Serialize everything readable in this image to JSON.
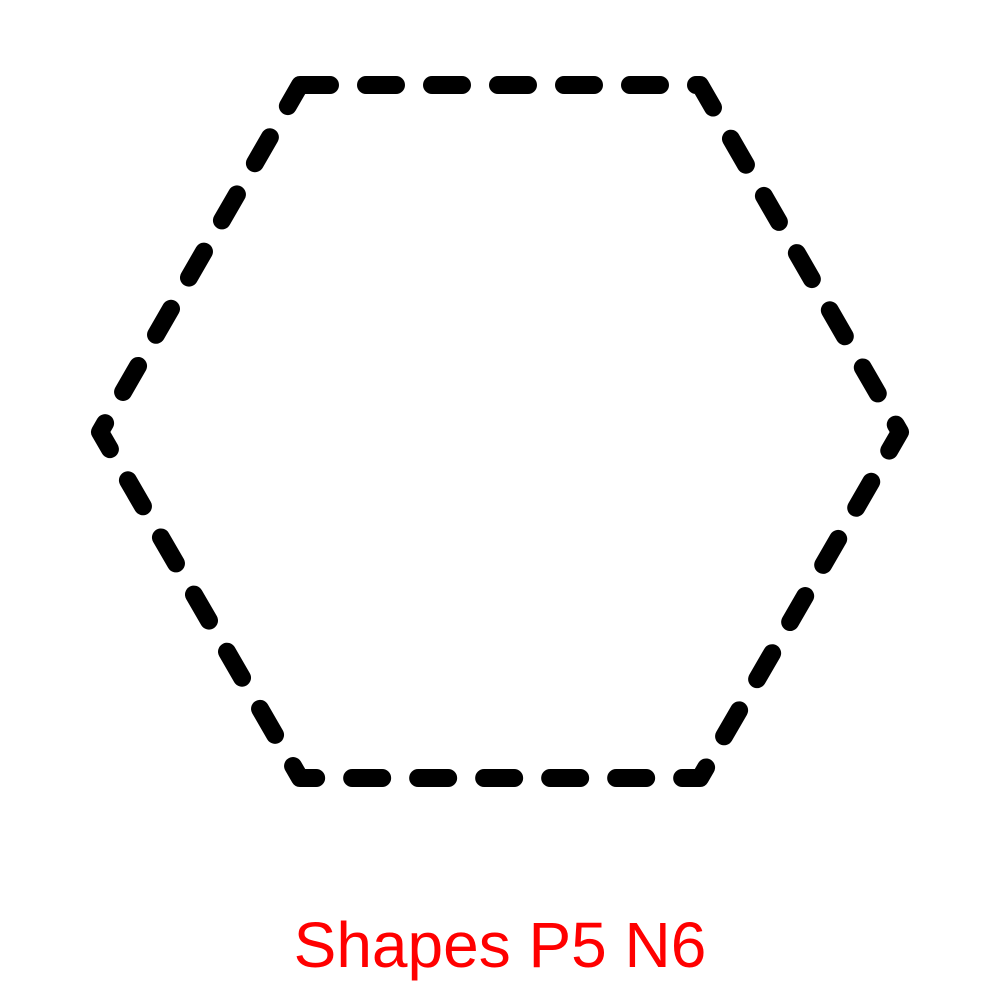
{
  "shape": {
    "kind": "hexagon",
    "sides": 6,
    "outline_style": "dashed",
    "stroke_color": "#000000",
    "fill_color": "none"
  },
  "caption": {
    "text": "Shapes P5 N6",
    "color": "#ff0000"
  }
}
